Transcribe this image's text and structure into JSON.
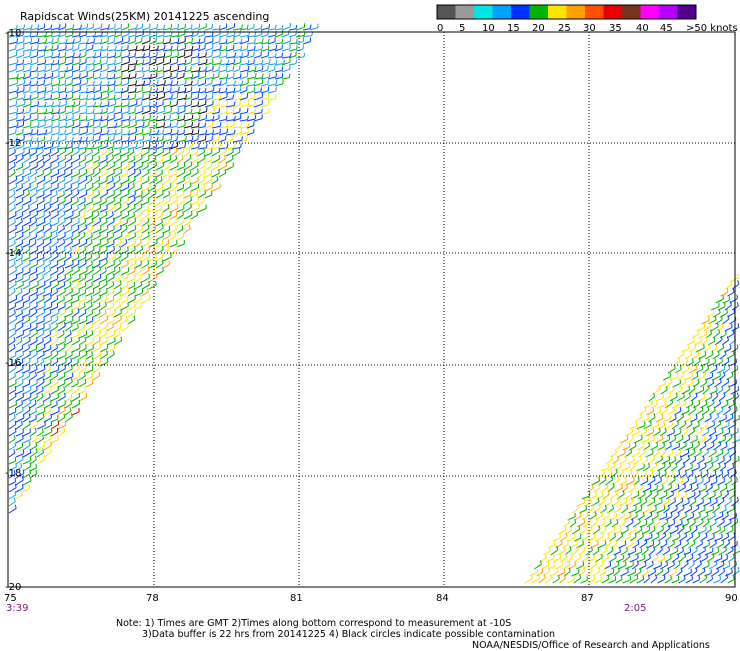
{
  "title": "Rapidscat Winds(25KM) 20141225 ascending",
  "legend": {
    "colors": [
      "#555555",
      "#9a9a9a",
      "#00e6e6",
      "#00a0ff",
      "#0032ff",
      "#00b400",
      "#ffe600",
      "#ffa000",
      "#ff5000",
      "#e60000",
      "#78321e",
      "#ff00ff",
      "#b400ff",
      "#50008c"
    ],
    "labels": [
      "0",
      "5",
      "10",
      "15",
      "20",
      "25",
      "30",
      "35",
      "40",
      "45",
      ">50 knots"
    ]
  },
  "axes": {
    "lon_labels": [
      "75",
      "78",
      "81",
      "84",
      "87",
      "90"
    ],
    "lat_labels": [
      "-10",
      "-12",
      "-14",
      "-16",
      "-18",
      "-20"
    ]
  },
  "swath_times": {
    "left": "3:39",
    "right": "2:05"
  },
  "notes": {
    "line1": "Note: 1) Times are GMT 2)Times along bottom correspond to measurement at -10S",
    "line2": "3)Data buffer is 22 hrs from 20141225 4) Black circles indicate possible contamination",
    "line3": "NOAA/NESDIS/Office of Research and Applications"
  }
}
